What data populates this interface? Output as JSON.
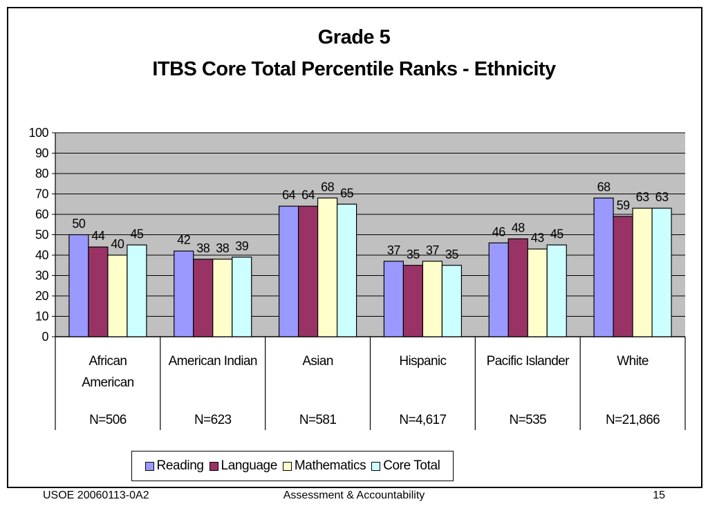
{
  "chart_data": {
    "type": "bar",
    "title": "Grade 5",
    "subtitle": "ITBS Core Total Percentile Ranks - Ethnicity",
    "categories": [
      [
        "African",
        "American"
      ],
      [
        "American Indian"
      ],
      [
        "Asian"
      ],
      [
        "Hispanic"
      ],
      [
        "Pacific Islander"
      ],
      [
        "White"
      ]
    ],
    "counts": [
      "N=506",
      "N=623",
      "N=581",
      "N=4,617",
      "N=535",
      "N=21,866"
    ],
    "series": [
      {
        "name": "Reading",
        "color": "#9999ff",
        "values": [
          50,
          42,
          64,
          37,
          46,
          68
        ]
      },
      {
        "name": "Language",
        "color": "#993366",
        "values": [
          44,
          38,
          64,
          35,
          48,
          59
        ]
      },
      {
        "name": "Mathematics",
        "color": "#ffffcc",
        "values": [
          40,
          38,
          68,
          37,
          43,
          63
        ]
      },
      {
        "name": "Core Total",
        "color": "#ccffff",
        "values": [
          45,
          39,
          65,
          35,
          45,
          63
        ]
      }
    ],
    "ylim": [
      0,
      100
    ],
    "yticks": [
      0,
      10,
      20,
      30,
      40,
      50,
      60,
      70,
      80,
      90,
      100
    ],
    "grid": true,
    "plot_background": "#c0c0c0",
    "legend_position": "bottom",
    "data_labels": true
  },
  "footer": {
    "left": "USOE 20060113-0A2",
    "center": "Assessment & Accountability",
    "right": "15"
  }
}
